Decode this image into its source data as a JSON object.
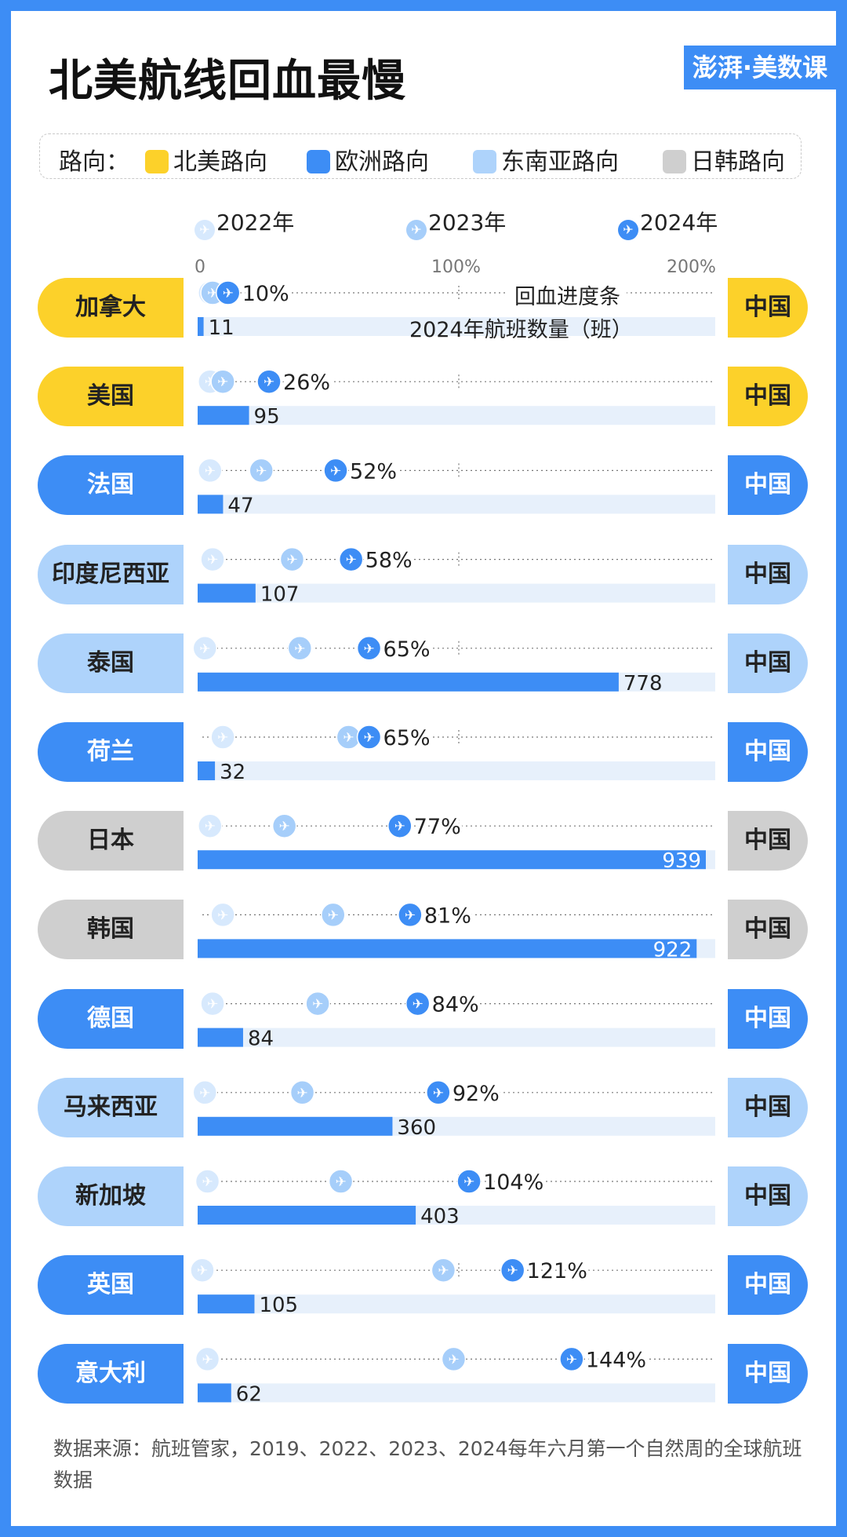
{
  "title": "北美航线回血最慢",
  "logo_text": "澎湃·美数课",
  "legend": {
    "label": "路向：",
    "items": [
      {
        "name": "北美路向",
        "color": "#fcd12a"
      },
      {
        "name": "欧洲路向",
        "color": "#3d8df5"
      },
      {
        "name": "东南亚路向",
        "color": "#aed3fb"
      },
      {
        "name": "日韩路向",
        "color": "#cfcfcf"
      }
    ]
  },
  "year_legend": [
    "2022年",
    "2023年",
    "2024年"
  ],
  "year_colors": {
    "2022年": "#d7e9fd",
    "2023年": "#a6cefa",
    "2024年": "#3d8df5"
  },
  "axis_ticks": [
    "0",
    "100%",
    "200%"
  ],
  "callouts": {
    "progress": "回血进度条",
    "flights": "2024年航班数量（班）"
  },
  "destination_label": "中国",
  "colors": {
    "north_america": "#fcd12a",
    "europe": "#3d8df5",
    "southeast_asia": "#aed3fb",
    "japan_korea": "#cfcfcf",
    "bar_bg": "#e7f0fb",
    "bar_fill": "#3d8df5"
  },
  "chart_data": {
    "type": "bar",
    "progress_axis": {
      "min": 0,
      "max": 200,
      "unit": "%"
    },
    "flights_axis": {
      "min": 0,
      "max": 939
    },
    "rows": [
      {
        "country": "加拿大",
        "route": "北美路向",
        "p2022": 3,
        "p2023": 4,
        "p2024": 10,
        "label": "10%",
        "flights": 11
      },
      {
        "country": "美国",
        "route": "北美路向",
        "p2022": 3,
        "p2023": 8,
        "p2024": 26,
        "label": "26%",
        "flights": 95
      },
      {
        "country": "法国",
        "route": "欧洲路向",
        "p2022": 3,
        "p2023": 23,
        "p2024": 52,
        "label": "52%",
        "flights": 47
      },
      {
        "country": "印度尼西亚",
        "route": "东南亚路向",
        "p2022": 4,
        "p2023": 35,
        "p2024": 58,
        "label": "58%",
        "flights": 107
      },
      {
        "country": "泰国",
        "route": "东南亚路向",
        "p2022": 1,
        "p2023": 38,
        "p2024": 65,
        "label": "65%",
        "flights": 778
      },
      {
        "country": "荷兰",
        "route": "欧洲路向",
        "p2022": 8,
        "p2023": 57,
        "p2024": 65,
        "label": "65%",
        "flights": 32
      },
      {
        "country": "日本",
        "route": "日韩路向",
        "p2022": 3,
        "p2023": 32,
        "p2024": 77,
        "label": "77%",
        "flights": 939
      },
      {
        "country": "韩国",
        "route": "日韩路向",
        "p2022": 8,
        "p2023": 51,
        "p2024": 81,
        "label": "81%",
        "flights": 922
      },
      {
        "country": "德国",
        "route": "欧洲路向",
        "p2022": 4,
        "p2023": 45,
        "p2024": 84,
        "label": "84%",
        "flights": 84
      },
      {
        "country": "马来西亚",
        "route": "东南亚路向",
        "p2022": 1,
        "p2023": 39,
        "p2024": 92,
        "label": "92%",
        "flights": 360
      },
      {
        "country": "新加坡",
        "route": "东南亚路向",
        "p2022": 2,
        "p2023": 54,
        "p2024": 104,
        "label": "104%",
        "flights": 403
      },
      {
        "country": "英国",
        "route": "欧洲路向",
        "p2022": 0,
        "p2023": 94,
        "p2024": 121,
        "label": "121%",
        "flights": 105
      },
      {
        "country": "意大利",
        "route": "欧洲路向",
        "p2022": 2,
        "p2023": 98,
        "p2024": 144,
        "label": "144%",
        "flights": 62
      }
    ]
  },
  "source": "数据来源：航班管家，2019、2022、2023、2024每年六月第一个自然周的全球航班数据"
}
